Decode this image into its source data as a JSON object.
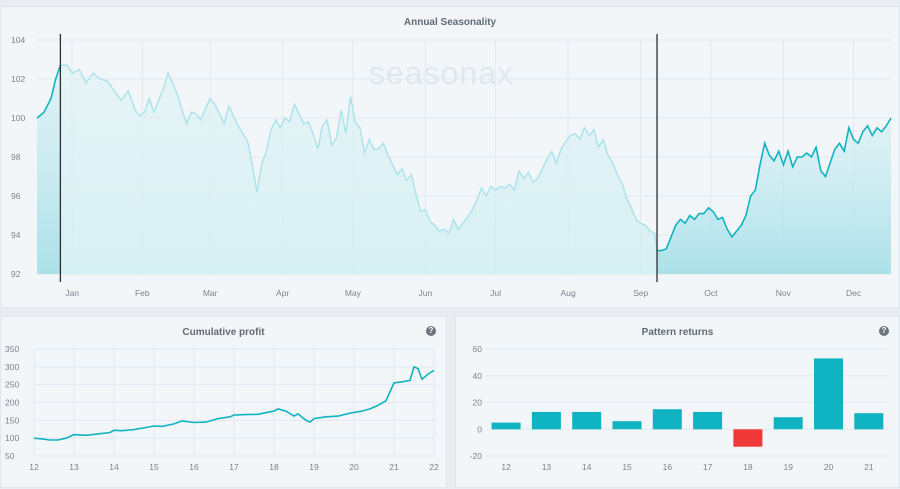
{
  "watermark": "seasonax",
  "help_glyph": "?",
  "colors": {
    "accent": "#0fb3c2",
    "faded": "#a9e3ea",
    "negative": "#f03a3a"
  },
  "chart_data": [
    {
      "id": "seasonality",
      "type": "area",
      "title": "Annual Seasonality",
      "ylim": [
        92,
        104
      ],
      "yticks": [
        92,
        94,
        96,
        98,
        100,
        102,
        104
      ],
      "x_range": [
        0,
        365
      ],
      "months": [
        {
          "label": "Jan",
          "pos": 15
        },
        {
          "label": "Feb",
          "pos": 45
        },
        {
          "label": "Mar",
          "pos": 74
        },
        {
          "label": "Apr",
          "pos": 105
        },
        {
          "label": "May",
          "pos": 135
        },
        {
          "label": "Jun",
          "pos": 166
        },
        {
          "label": "Jul",
          "pos": 196
        },
        {
          "label": "Aug",
          "pos": 227
        },
        {
          "label": "Sep",
          "pos": 258
        },
        {
          "label": "Oct",
          "pos": 288
        },
        {
          "label": "Nov",
          "pos": 319
        },
        {
          "label": "Dec",
          "pos": 349
        }
      ],
      "pattern_start_day": 10,
      "pattern_end_day": 265,
      "points": [
        [
          0,
          100
        ],
        [
          3,
          100.3
        ],
        [
          6,
          101
        ],
        [
          8,
          102
        ],
        [
          10,
          102.7
        ],
        [
          13,
          102.7
        ],
        [
          15,
          102.3
        ],
        [
          18,
          102.5
        ],
        [
          21,
          101.8
        ],
        [
          24,
          102.3
        ],
        [
          27,
          102
        ],
        [
          30,
          101.9
        ],
        [
          33,
          101.4
        ],
        [
          36,
          100.9
        ],
        [
          39,
          101.4
        ],
        [
          42,
          100.4
        ],
        [
          44,
          100.1
        ],
        [
          46,
          100.3
        ],
        [
          48,
          101
        ],
        [
          50,
          100.3
        ],
        [
          52,
          100.9
        ],
        [
          54,
          101.5
        ],
        [
          56,
          102.3
        ],
        [
          58,
          101.8
        ],
        [
          60,
          101.2
        ],
        [
          62,
          100.4
        ],
        [
          64,
          99.7
        ],
        [
          66,
          100.3
        ],
        [
          68,
          100.2
        ],
        [
          70,
          99.9
        ],
        [
          72,
          100.5
        ],
        [
          74,
          101
        ],
        [
          76,
          100.7
        ],
        [
          78,
          100.2
        ],
        [
          80,
          99.7
        ],
        [
          82,
          100.6
        ],
        [
          84,
          100.1
        ],
        [
          86,
          99.6
        ],
        [
          88,
          99.2
        ],
        [
          90,
          98.8
        ],
        [
          92,
          97.6
        ],
        [
          94,
          96.2
        ],
        [
          96,
          97.6
        ],
        [
          98,
          98.3
        ],
        [
          100,
          99.4
        ],
        [
          102,
          99.9
        ],
        [
          104,
          99.5
        ],
        [
          106,
          100
        ],
        [
          108,
          99.8
        ],
        [
          110,
          100.7
        ],
        [
          112,
          100.2
        ],
        [
          114,
          99.7
        ],
        [
          116,
          99.8
        ],
        [
          118,
          99.2
        ],
        [
          120,
          98.4
        ],
        [
          122,
          99.6
        ],
        [
          124,
          99.9
        ],
        [
          126,
          98.6
        ],
        [
          128,
          99
        ],
        [
          130,
          100.4
        ],
        [
          132,
          99.2
        ],
        [
          134,
          101.1
        ],
        [
          136,
          99.8
        ],
        [
          138,
          99.5
        ],
        [
          140,
          98.2
        ],
        [
          142,
          98.9
        ],
        [
          144,
          98.4
        ],
        [
          146,
          98.4
        ],
        [
          148,
          98.7
        ],
        [
          150,
          98.1
        ],
        [
          152,
          97.6
        ],
        [
          154,
          97.1
        ],
        [
          156,
          97.4
        ],
        [
          158,
          96.8
        ],
        [
          160,
          97.1
        ],
        [
          162,
          96.1
        ],
        [
          164,
          95.2
        ],
        [
          166,
          95.3
        ],
        [
          168,
          94.7
        ],
        [
          170,
          94.5
        ],
        [
          172,
          94.2
        ],
        [
          174,
          94.3
        ],
        [
          176,
          94.1
        ],
        [
          178,
          94.8
        ],
        [
          180,
          94.3
        ],
        [
          182,
          94.6
        ],
        [
          184,
          94.9
        ],
        [
          186,
          95.3
        ],
        [
          188,
          95.8
        ],
        [
          190,
          96.4
        ],
        [
          192,
          96
        ],
        [
          194,
          96.5
        ],
        [
          196,
          96.3
        ],
        [
          198,
          96.5
        ],
        [
          200,
          96.4
        ],
        [
          202,
          96.6
        ],
        [
          204,
          96.3
        ],
        [
          206,
          97.3
        ],
        [
          208,
          96.9
        ],
        [
          210,
          97.2
        ],
        [
          212,
          96.7
        ],
        [
          214,
          96.9
        ],
        [
          216,
          97.4
        ],
        [
          218,
          97.9
        ],
        [
          220,
          98.3
        ],
        [
          222,
          97.7
        ],
        [
          224,
          98.4
        ],
        [
          226,
          98.8
        ],
        [
          228,
          99.1
        ],
        [
          230,
          99.2
        ],
        [
          232,
          98.9
        ],
        [
          234,
          99.5
        ],
        [
          236,
          99.1
        ],
        [
          238,
          99.4
        ],
        [
          240,
          98.5
        ],
        [
          242,
          98.9
        ],
        [
          244,
          98.1
        ],
        [
          246,
          97.7
        ],
        [
          248,
          97.1
        ],
        [
          250,
          96.7
        ],
        [
          252,
          95.9
        ],
        [
          254,
          95.4
        ],
        [
          256,
          94.8
        ],
        [
          258,
          94.6
        ],
        [
          260,
          94.5
        ],
        [
          262,
          94.2
        ],
        [
          264,
          94.1
        ],
        [
          265,
          93.2
        ],
        [
          267,
          93.2
        ],
        [
          269,
          93.3
        ],
        [
          271,
          93.9
        ],
        [
          273,
          94.5
        ],
        [
          275,
          94.8
        ],
        [
          277,
          94.6
        ],
        [
          279,
          95
        ],
        [
          281,
          94.8
        ],
        [
          283,
          95.1
        ],
        [
          285,
          95.1
        ],
        [
          287,
          95.4
        ],
        [
          289,
          95.2
        ],
        [
          291,
          94.8
        ],
        [
          293,
          94.9
        ],
        [
          295,
          94.3
        ],
        [
          297,
          93.9
        ],
        [
          299,
          94.2
        ],
        [
          301,
          94.5
        ],
        [
          303,
          95
        ],
        [
          305,
          96
        ],
        [
          307,
          96.3
        ],
        [
          309,
          97.6
        ],
        [
          311,
          98.7
        ],
        [
          313,
          98.1
        ],
        [
          315,
          97.8
        ],
        [
          317,
          98.3
        ],
        [
          319,
          97.6
        ],
        [
          321,
          98.3
        ],
        [
          323,
          97.5
        ],
        [
          325,
          98
        ],
        [
          327,
          98
        ],
        [
          329,
          98.2
        ],
        [
          331,
          98
        ],
        [
          333,
          98.5
        ],
        [
          335,
          97.3
        ],
        [
          337,
          97
        ],
        [
          339,
          97.7
        ],
        [
          341,
          98.4
        ],
        [
          343,
          98.7
        ],
        [
          345,
          98.3
        ],
        [
          347,
          99.5
        ],
        [
          349,
          98.9
        ],
        [
          351,
          98.7
        ],
        [
          353,
          99.3
        ],
        [
          355,
          99.6
        ],
        [
          357,
          99.1
        ],
        [
          359,
          99.5
        ],
        [
          361,
          99.3
        ],
        [
          363,
          99.6
        ],
        [
          365,
          100
        ]
      ]
    },
    {
      "id": "cumulative",
      "type": "line",
      "title": "Cumulative profit",
      "ylim": [
        50,
        350
      ],
      "yticks": [
        50,
        100,
        150,
        200,
        250,
        300,
        350
      ],
      "xlim": [
        12,
        22
      ],
      "xticks": [
        "12",
        "13",
        "14",
        "15",
        "16",
        "17",
        "18",
        "19",
        "20",
        "21",
        "22"
      ],
      "points": [
        [
          12,
          100
        ],
        [
          12.2,
          98
        ],
        [
          12.4,
          95
        ],
        [
          12.6,
          95
        ],
        [
          12.8,
          100
        ],
        [
          13,
          110
        ],
        [
          13.3,
          108
        ],
        [
          13.6,
          112
        ],
        [
          13.9,
          116
        ],
        [
          14,
          122
        ],
        [
          14.2,
          121
        ],
        [
          14.5,
          124
        ],
        [
          14.8,
          130
        ],
        [
          15,
          134
        ],
        [
          15.2,
          133
        ],
        [
          15.5,
          140
        ],
        [
          15.7,
          148
        ],
        [
          16,
          144
        ],
        [
          16.3,
          145
        ],
        [
          16.6,
          155
        ],
        [
          16.9,
          160
        ],
        [
          17,
          165
        ],
        [
          17.3,
          166
        ],
        [
          17.6,
          167
        ],
        [
          17.9,
          174
        ],
        [
          18,
          176
        ],
        [
          18.1,
          182
        ],
        [
          18.3,
          176
        ],
        [
          18.5,
          162
        ],
        [
          18.6,
          168
        ],
        [
          18.8,
          150
        ],
        [
          18.9,
          145
        ],
        [
          19,
          155
        ],
        [
          19.3,
          160
        ],
        [
          19.6,
          162
        ],
        [
          19.9,
          170
        ],
        [
          20,
          172
        ],
        [
          20.2,
          176
        ],
        [
          20.4,
          182
        ],
        [
          20.6,
          192
        ],
        [
          20.8,
          205
        ],
        [
          21,
          255
        ],
        [
          21.2,
          258
        ],
        [
          21.4,
          262
        ],
        [
          21.5,
          300
        ],
        [
          21.6,
          295
        ],
        [
          21.7,
          265
        ],
        [
          21.85,
          280
        ],
        [
          22,
          290
        ]
      ]
    },
    {
      "id": "pattern",
      "type": "bar",
      "title": "Pattern returns",
      "ylim": [
        -20,
        60
      ],
      "yticks": [
        -20,
        0,
        20,
        40,
        60
      ],
      "categories": [
        "12",
        "13",
        "14",
        "15",
        "16",
        "17",
        "18",
        "19",
        "20",
        "21"
      ],
      "values": [
        5,
        13,
        13,
        6,
        15,
        13,
        -13,
        9,
        53,
        12
      ]
    }
  ]
}
